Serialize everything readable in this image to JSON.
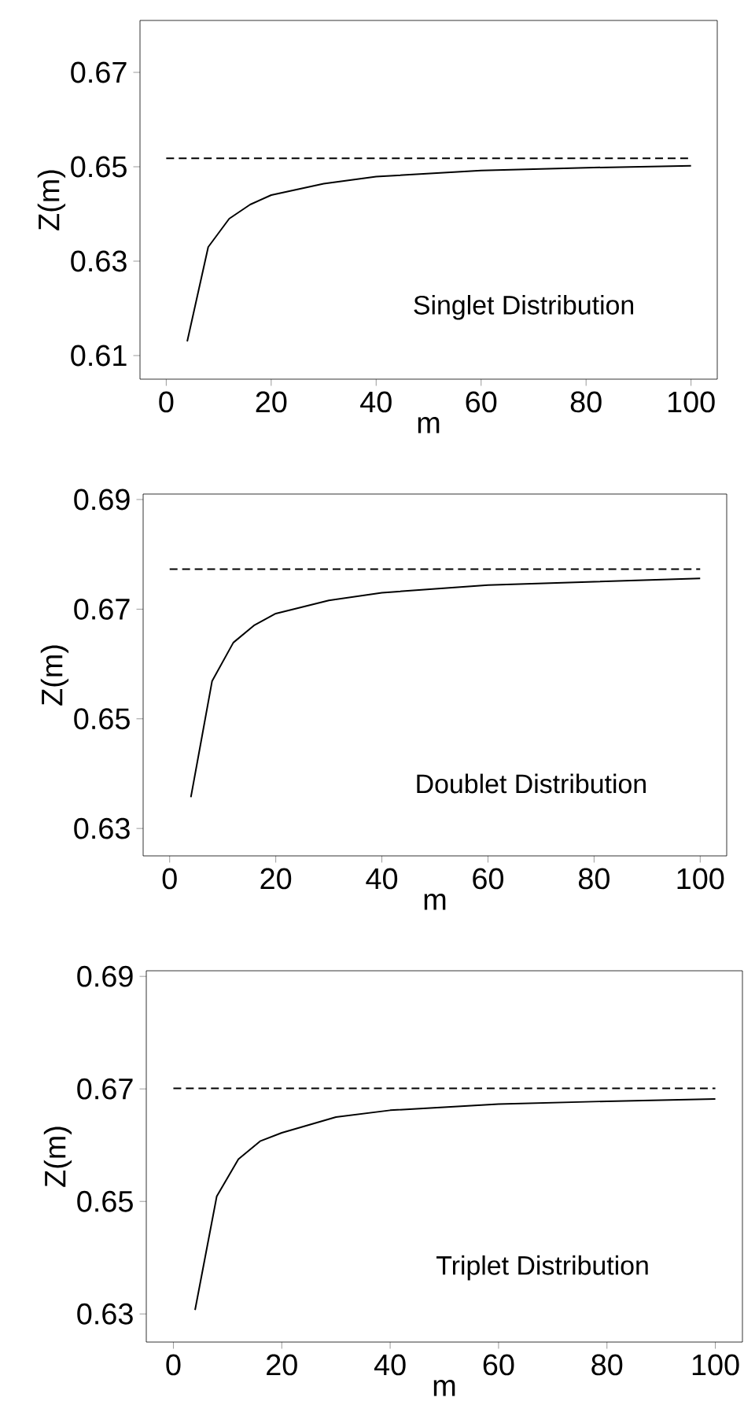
{
  "chart_data": [
    {
      "type": "line",
      "xlabel": "m",
      "ylabel": "Z(m)",
      "xlim": [
        -5,
        105
      ],
      "ylim": [
        0.605,
        0.681
      ],
      "xticks": [
        0,
        20,
        40,
        60,
        80,
        100
      ],
      "yticks": [
        0.61,
        0.63,
        0.65,
        0.67
      ],
      "annotations": [
        "Singlet Distribution"
      ],
      "series": [
        {
          "color": "#000000",
          "line_style": "solid",
          "x": [
            4,
            8,
            12,
            16,
            20,
            30,
            40,
            60,
            80,
            100
          ],
          "values": [
            0.613,
            0.633,
            0.639,
            0.642,
            0.644,
            0.6464,
            0.6479,
            0.6492,
            0.6498,
            0.6502
          ]
        },
        {
          "color": "#000000",
          "line_style": "dashed",
          "x": [
            0,
            100
          ],
          "values": [
            0.6518,
            0.6518
          ]
        }
      ]
    },
    {
      "type": "line",
      "xlabel": "m",
      "ylabel": "Z(m)",
      "xlim": [
        -5,
        105
      ],
      "ylim": [
        0.625,
        0.691
      ],
      "xticks": [
        0,
        20,
        40,
        60,
        80,
        100
      ],
      "yticks": [
        0.63,
        0.65,
        0.67,
        0.69
      ],
      "annotations": [
        "Doublet Distribution"
      ],
      "series": [
        {
          "color": "#000000",
          "line_style": "solid",
          "x": [
            4,
            8,
            12,
            16,
            20,
            30,
            40,
            60,
            80,
            100
          ],
          "values": [
            0.6357,
            0.6569,
            0.6639,
            0.6671,
            0.6692,
            0.6716,
            0.673,
            0.6744,
            0.675,
            0.6756
          ]
        },
        {
          "color": "#000000",
          "line_style": "dashed",
          "x": [
            0,
            100
          ],
          "values": [
            0.6773,
            0.6773
          ]
        }
      ]
    },
    {
      "type": "line",
      "xlabel": "m",
      "ylabel": "Z(m)",
      "xlim": [
        -5,
        105
      ],
      "ylim": [
        0.625,
        0.691
      ],
      "xticks": [
        0,
        20,
        40,
        60,
        80,
        100
      ],
      "yticks": [
        0.63,
        0.65,
        0.67,
        0.69
      ],
      "annotations": [
        "Triplet Distribution"
      ],
      "series": [
        {
          "color": "#000000",
          "line_style": "solid",
          "x": [
            4,
            8,
            12,
            16,
            20,
            30,
            40,
            60,
            80,
            100
          ],
          "values": [
            0.6307,
            0.6509,
            0.6575,
            0.6607,
            0.6622,
            0.665,
            0.6662,
            0.6673,
            0.6678,
            0.6682
          ]
        },
        {
          "color": "#000000",
          "line_style": "dashed",
          "x": [
            0,
            100
          ],
          "values": [
            0.6701,
            0.6701
          ]
        }
      ]
    }
  ]
}
